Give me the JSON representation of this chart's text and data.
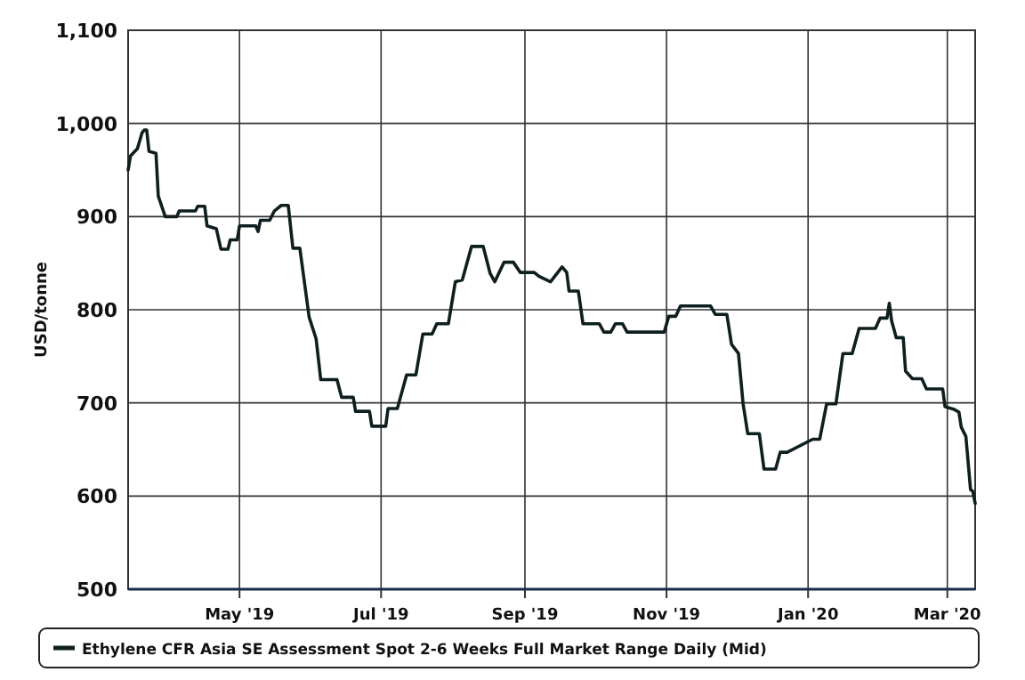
{
  "chart_data": {
    "type": "line",
    "ylabel": "USD/tonne",
    "xlim": [
      "2019-03-14",
      "2020-03-13"
    ],
    "xticks": [
      {
        "value": "2019-05-01",
        "label": "May '19"
      },
      {
        "value": "2019-07-01",
        "label": "Jul '19"
      },
      {
        "value": "2019-09-01",
        "label": "Sep '19"
      },
      {
        "value": "2019-11-01",
        "label": "Nov '19"
      },
      {
        "value": "2020-01-01",
        "label": "Jan '20"
      },
      {
        "value": "2020-03-01",
        "label": "Mar '20"
      }
    ],
    "ylim": [
      500,
      1100
    ],
    "yticks": [
      500,
      600,
      700,
      800,
      900,
      {
        "value": 1000,
        "label": "1,000"
      },
      {
        "value": 1100,
        "label": "1,100"
      }
    ],
    "grid": true,
    "legend": "bottom",
    "marker": "none",
    "line_style": "solid",
    "x": [
      "2019-03-14",
      "2019-03-15",
      "2019-03-18",
      "2019-03-20",
      "2019-03-21",
      "2019-03-22",
      "2019-03-23",
      "2019-03-26",
      "2019-03-27",
      "2019-03-30",
      "2019-04-04",
      "2019-04-05",
      "2019-04-12",
      "2019-04-13",
      "2019-04-16",
      "2019-04-17",
      "2019-04-21",
      "2019-04-23",
      "2019-04-26",
      "2019-04-27",
      "2019-04-30",
      "2019-05-01",
      "2019-05-08",
      "2019-05-09",
      "2019-05-10",
      "2019-05-14",
      "2019-05-16",
      "2019-05-19",
      "2019-05-22",
      "2019-05-24",
      "2019-05-27",
      "2019-05-31",
      "2019-06-03",
      "2019-06-05",
      "2019-06-12",
      "2019-06-14",
      "2019-06-19",
      "2019-06-20",
      "2019-06-26",
      "2019-06-27",
      "2019-07-03",
      "2019-07-04",
      "2019-07-08",
      "2019-07-10",
      "2019-07-12",
      "2019-07-16",
      "2019-07-19",
      "2019-07-23",
      "2019-07-25",
      "2019-07-30",
      "2019-08-02",
      "2019-08-05",
      "2019-08-09",
      "2019-08-14",
      "2019-08-17",
      "2019-08-19",
      "2019-08-23",
      "2019-08-27",
      "2019-08-30",
      "2019-09-05",
      "2019-09-07",
      "2019-09-12",
      "2019-09-17",
      "2019-09-19",
      "2019-09-20",
      "2019-09-24",
      "2019-09-26",
      "2019-10-03",
      "2019-10-05",
      "2019-10-08",
      "2019-10-10",
      "2019-10-13",
      "2019-10-15",
      "2019-10-31",
      "2019-11-02",
      "2019-11-05",
      "2019-11-07",
      "2019-11-20",
      "2019-11-22",
      "2019-11-27",
      "2019-11-29",
      "2019-12-02",
      "2019-12-04",
      "2019-12-06",
      "2019-12-11",
      "2019-12-13",
      "2019-12-18",
      "2019-12-20",
      "2019-12-23",
      "2020-01-03",
      "2020-01-06",
      "2020-01-09",
      "2020-01-13",
      "2020-01-16",
      "2020-01-20",
      "2020-01-23",
      "2020-01-30",
      "2020-02-01",
      "2020-02-04",
      "2020-02-05",
      "2020-02-06",
      "2020-02-08",
      "2020-02-11",
      "2020-02-12",
      "2020-02-15",
      "2020-02-19",
      "2020-02-21",
      "2020-02-28",
      "2020-02-29",
      "2020-03-04",
      "2020-03-06",
      "2020-03-07",
      "2020-03-09",
      "2020-03-11",
      "2020-03-12",
      "2020-03-13"
    ],
    "series": [
      {
        "name": "Ethylene CFR Asia SE Assessment Spot 2-6 Weeks Full Market Range Daily (Mid)",
        "color": "#0f1f1f",
        "values": [
          950,
          965,
          973,
          990,
          993,
          993,
          970,
          968,
          922,
          900,
          900,
          906,
          906,
          911,
          911,
          890,
          887,
          865,
          865,
          875,
          875,
          890,
          890,
          884,
          896,
          896,
          906,
          912,
          912,
          866,
          866,
          792,
          769,
          725,
          725,
          706,
          706,
          691,
          691,
          675,
          675,
          694,
          694,
          712,
          730,
          730,
          774,
          774,
          785,
          785,
          830,
          832,
          868,
          868,
          839,
          830,
          851,
          851,
          840,
          840,
          836,
          830,
          846,
          840,
          820,
          820,
          785,
          785,
          776,
          776,
          785,
          785,
          776,
          776,
          793,
          793,
          804,
          804,
          795,
          795,
          763,
          753,
          699,
          667,
          667,
          629,
          629,
          647,
          647,
          661,
          661,
          699,
          699,
          753,
          753,
          780,
          780,
          791,
          791,
          807,
          788,
          770,
          770,
          734,
          726,
          726,
          715,
          715,
          696,
          693,
          690,
          674,
          664,
          607,
          605,
          592
        ]
      }
    ]
  }
}
